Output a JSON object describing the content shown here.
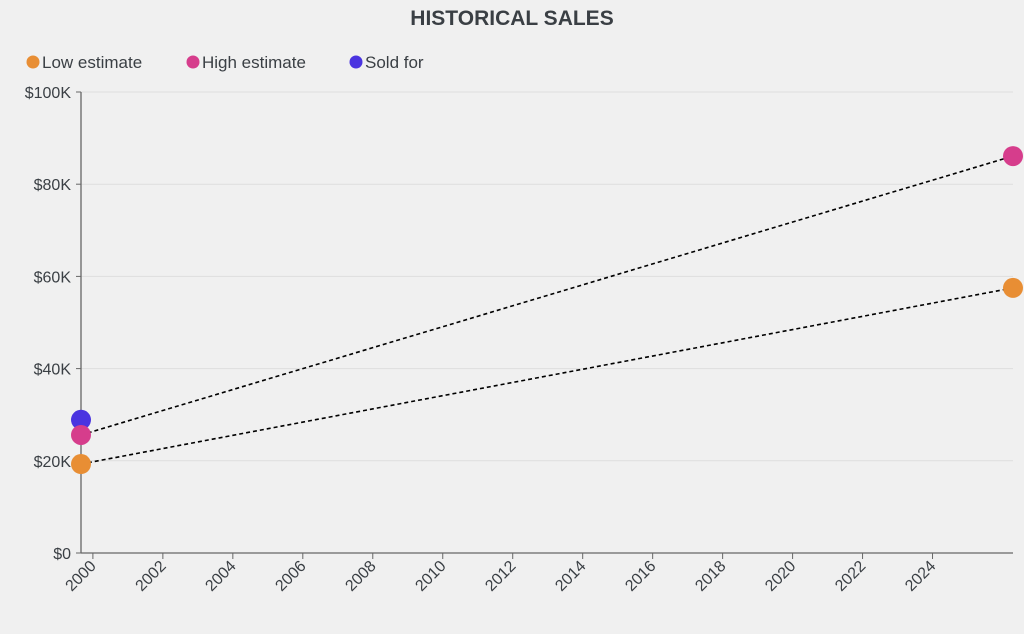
{
  "chart_data": {
    "type": "scatter",
    "title": "HISTORICAL SALES",
    "xlabel": "",
    "ylabel": "",
    "xlim": [
      1999.66,
      2026.3
    ],
    "ylim": [
      0,
      100000
    ],
    "grid": "horizontal",
    "legend_placement": "top-left",
    "x_ticks": [
      "2000",
      "2002",
      "2004",
      "2006",
      "2008",
      "2010",
      "2012",
      "2014",
      "2016",
      "2018",
      "2020",
      "2022",
      "2024"
    ],
    "y_ticks": [
      "$0",
      "$20K",
      "$40K",
      "$60K",
      "$80K",
      "$100K"
    ],
    "series": [
      {
        "name": "Low estimate",
        "color": "#e88e34",
        "points": [
          {
            "x": 1999.66,
            "y": 19300
          },
          {
            "x": 2026.3,
            "y": 57500
          }
        ]
      },
      {
        "name": "High estimate",
        "color": "#d63d8c",
        "points": [
          {
            "x": 1999.66,
            "y": 25600
          },
          {
            "x": 2026.3,
            "y": 86100
          }
        ]
      },
      {
        "name": "Sold for",
        "color": "#4a34e0",
        "points": [
          {
            "x": 1999.66,
            "y": 28900
          }
        ]
      }
    ],
    "trend_lines": [
      {
        "series": "Low estimate",
        "style": "dotted",
        "color": "#000000"
      },
      {
        "series": "High estimate",
        "style": "dotted",
        "color": "#000000"
      }
    ]
  }
}
